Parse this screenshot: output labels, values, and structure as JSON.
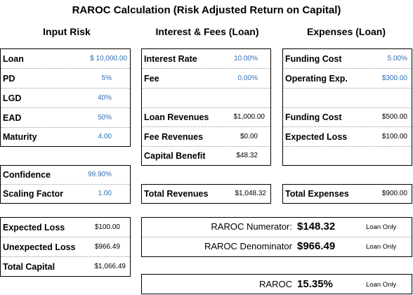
{
  "title": "RAROC Calculation (Risk Adjusted Return on Capital)",
  "headers": {
    "input_risk": "Input Risk",
    "interest_fees": "Interest & Fees (Loan)",
    "expenses": "Expenses (Loan)"
  },
  "input_risk": {
    "loan": {
      "label": "Loan",
      "value": "$ 10,000.00"
    },
    "pd": {
      "label": "PD",
      "value": "5%"
    },
    "lgd": {
      "label": "LGD",
      "value": "40%"
    },
    "ead": {
      "label": "EAD",
      "value": "50%"
    },
    "maturity": {
      "label": "Maturity",
      "value": "4.00"
    }
  },
  "params": {
    "confidence": {
      "label": "Confidence",
      "value": "99.90%"
    },
    "scaling": {
      "label": "Scaling Factor",
      "value": "1.00"
    }
  },
  "capital": {
    "expected_loss": {
      "label": "Expected Loss",
      "value": "$100.00"
    },
    "unexpected_loss": {
      "label": "Unexpected Loss",
      "value": "$966.49"
    },
    "total_capital": {
      "label": "Total Capital",
      "value": "$1,066.49"
    }
  },
  "interest": {
    "rate": {
      "label": "Interest Rate",
      "value": "10.00%"
    },
    "fee": {
      "label": "Fee",
      "value": "0.00%"
    },
    "loan_revenues": {
      "label": "Loan Revenues",
      "value": "$1,000.00"
    },
    "fee_revenues": {
      "label": "Fee Revenues",
      "value": "$0.00"
    },
    "capital_benefit": {
      "label": "Capital Benefit",
      "value": "$48.32"
    },
    "total_revenues": {
      "label": "Total Revenues",
      "value": "$1,048.32"
    }
  },
  "expenses": {
    "funding_cost_rate": {
      "label": "Funding Cost",
      "value": "5.00%"
    },
    "operating_exp": {
      "label": "Operating Exp.",
      "value": "$300.00"
    },
    "funding_cost": {
      "label": "Funding Cost",
      "value": "$500.00"
    },
    "expected_loss": {
      "label": "Expected Loss",
      "value": "$100.00"
    },
    "total_expenses": {
      "label": "Total Expenses",
      "value": "$900.00"
    }
  },
  "raroc": {
    "numerator": {
      "label": "RAROC Numerator:",
      "value": "$148.32",
      "note": "Loan Only"
    },
    "denominator": {
      "label": "RAROC Denominator",
      "value": "$966.49",
      "note": "Loan Only"
    },
    "result": {
      "label": "RAROC",
      "value": "15.35%",
      "note": "Loan Only"
    }
  },
  "colors": {
    "input_value": "#2e6fb5",
    "border": "#000000",
    "divider": "#9a9a9a"
  }
}
